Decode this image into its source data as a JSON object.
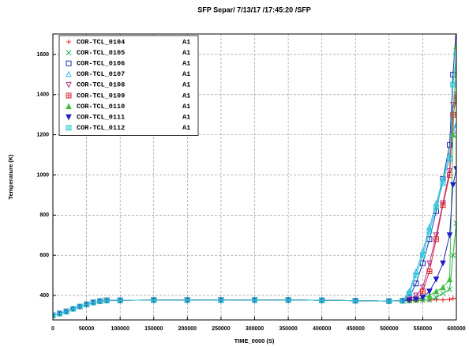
{
  "chart_data": {
    "type": "line",
    "title": "SFP Separ/ 7/13/17 /17:45:20 /SFP",
    "xlabel": "TIME_0000 (S)",
    "ylabel": "Temperature (K)",
    "x": [
      0,
      10000,
      20000,
      30000,
      40000,
      50000,
      60000,
      70000,
      80000,
      100000,
      150000,
      200000,
      250000,
      300000,
      350000,
      400000,
      450000,
      500000,
      520000,
      530000,
      540000,
      550000,
      560000,
      570000,
      580000,
      590000,
      595000,
      600000
    ],
    "xlim": [
      0,
      600000
    ],
    "xticks": [
      0,
      50000,
      100000,
      150000,
      200000,
      250000,
      300000,
      350000,
      400000,
      450000,
      500000,
      550000,
      600000
    ],
    "ylim": [
      278,
      1702
    ],
    "yticks": [
      400,
      600,
      800,
      1000,
      1200,
      1400,
      1600
    ],
    "grid": true,
    "legend": "upper left",
    "series": [
      {
        "name": "COR-TCL_0104",
        "tag": "A1",
        "color": "#e8202a",
        "marker": "plus",
        "values": [
          300,
          310,
          320,
          333,
          345,
          355,
          365,
          372,
          375,
          376,
          377,
          377,
          377,
          377,
          377,
          376,
          374,
          372,
          374,
          375,
          375,
          376,
          377,
          378,
          378,
          380,
          385,
          385
        ]
      },
      {
        "name": "COR-TCL_0105",
        "tag": "A1",
        "color": "#22b04a",
        "marker": "cross",
        "values": [
          300,
          310,
          320,
          333,
          345,
          355,
          365,
          372,
          375,
          376,
          377,
          377,
          377,
          377,
          377,
          376,
          374,
          372,
          374,
          375,
          375,
          376,
          378,
          390,
          410,
          430,
          600,
          760
        ]
      },
      {
        "name": "COR-TCL_0106",
        "tag": "A1",
        "color": "#1a2fb0",
        "marker": "square",
        "values": [
          300,
          310,
          320,
          333,
          345,
          355,
          365,
          372,
          375,
          376,
          377,
          377,
          377,
          377,
          377,
          376,
          374,
          372,
          374,
          390,
          460,
          560,
          680,
          820,
          980,
          1150,
          1500,
          1740
        ]
      },
      {
        "name": "COR-TCL_0107",
        "tag": "A1",
        "color": "#33b6e0",
        "marker": "triangle",
        "values": [
          300,
          310,
          320,
          333,
          345,
          355,
          365,
          372,
          375,
          376,
          377,
          377,
          377,
          377,
          377,
          376,
          374,
          372,
          374,
          420,
          520,
          620,
          740,
          860,
          980,
          1100,
          1220,
          1250
        ]
      },
      {
        "name": "COR-TCL_0108",
        "tag": "A1",
        "color": "#b0308e",
        "marker": "down",
        "values": [
          300,
          310,
          320,
          333,
          345,
          355,
          365,
          372,
          375,
          376,
          377,
          377,
          377,
          377,
          377,
          376,
          374,
          372,
          374,
          380,
          400,
          440,
          560,
          700,
          860,
          1020,
          1350,
          1400
        ]
      },
      {
        "name": "COR-TCL_0109",
        "tag": "A1",
        "color": "#d8262e",
        "marker": "boxplus",
        "values": [
          300,
          310,
          320,
          333,
          345,
          355,
          365,
          372,
          375,
          376,
          377,
          377,
          377,
          377,
          377,
          376,
          374,
          372,
          374,
          376,
          380,
          420,
          520,
          680,
          850,
          1000,
          1300,
          1380
        ]
      },
      {
        "name": "COR-TCL_0110",
        "tag": "A1",
        "color": "#40c040",
        "marker": "filltri",
        "values": [
          300,
          310,
          320,
          333,
          345,
          355,
          365,
          372,
          375,
          376,
          377,
          377,
          377,
          377,
          377,
          376,
          374,
          372,
          374,
          376,
          380,
          390,
          400,
          420,
          440,
          480,
          1200,
          1640
        ]
      },
      {
        "name": "COR-TCL_0111",
        "tag": "A1",
        "color": "#2020c0",
        "marker": "filldown",
        "values": [
          300,
          310,
          320,
          333,
          345,
          355,
          365,
          372,
          375,
          376,
          377,
          377,
          377,
          377,
          377,
          376,
          374,
          372,
          374,
          376,
          380,
          390,
          420,
          480,
          560,
          700,
          950,
          1030
        ]
      },
      {
        "name": "COR-TCL_0112",
        "tag": "A1",
        "color": "#30c8d8",
        "marker": "boxcross",
        "values": [
          300,
          310,
          320,
          333,
          345,
          355,
          365,
          372,
          375,
          376,
          377,
          377,
          377,
          377,
          377,
          376,
          374,
          372,
          374,
          410,
          500,
          600,
          720,
          840,
          960,
          1080,
          1450,
          1600
        ]
      }
    ]
  }
}
